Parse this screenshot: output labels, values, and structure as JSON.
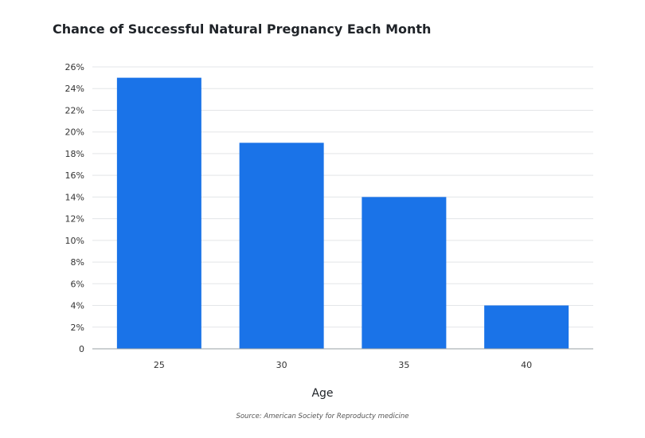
{
  "chart_data": {
    "type": "bar",
    "title": "Chance of Successful Natural Pregnancy Each Month",
    "xlabel": "Age",
    "ylabel": "",
    "categories": [
      "25",
      "30",
      "35",
      "40"
    ],
    "values": [
      25,
      19,
      14,
      4
    ],
    "ylim": [
      0,
      26
    ],
    "yticks": [
      "0",
      "2%",
      "4%",
      "6%",
      "8%",
      "10%",
      "12%",
      "14%",
      "16%",
      "18%",
      "20%",
      "22%",
      "24%",
      "26%"
    ],
    "grid": true,
    "bar_color": "#1a73e8",
    "source": "Source: American Society for Reproducty medicine"
  }
}
